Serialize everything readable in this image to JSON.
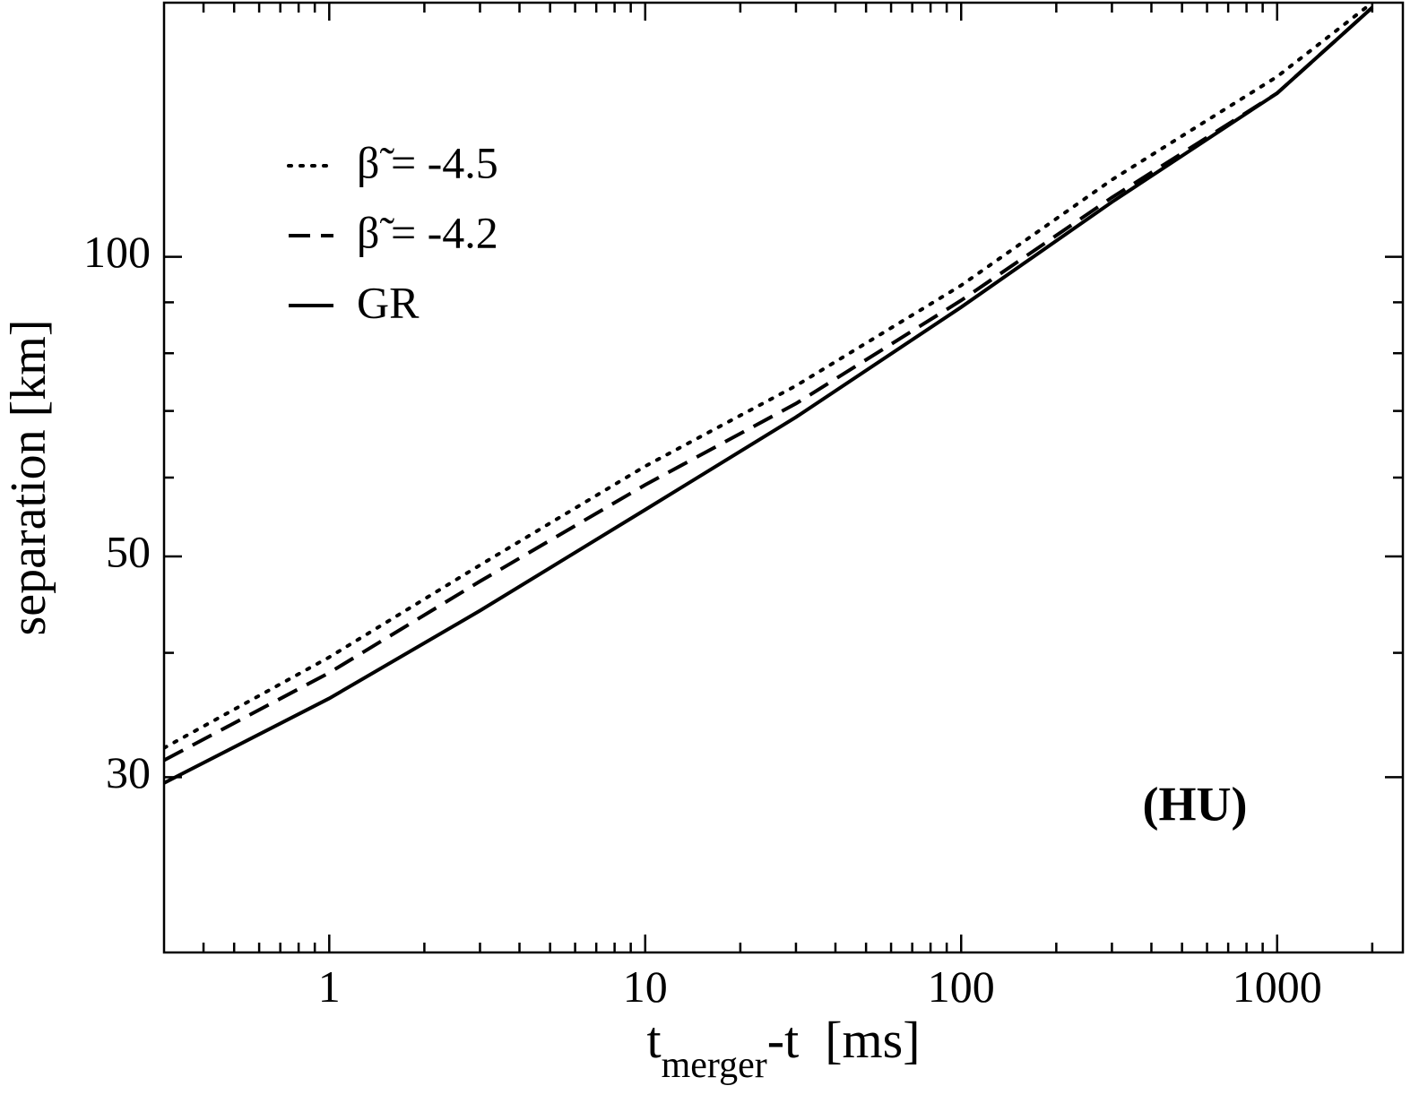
{
  "chart_data": {
    "type": "line",
    "xlabel": {
      "main": "t",
      "sub": "merger",
      "rest": "-t  [ms]"
    },
    "ylabel": "separation [km]",
    "annotation": "(HU)",
    "xscale": "log",
    "yscale": "log",
    "xlim": [
      0.3,
      2500
    ],
    "ylim": [
      20,
      180
    ],
    "xticks": [
      1,
      10,
      100,
      1000
    ],
    "xminorticks": [
      0.4,
      0.5,
      0.6,
      0.7,
      0.8,
      0.9,
      2,
      3,
      4,
      5,
      6,
      7,
      8,
      9,
      20,
      30,
      40,
      50,
      60,
      70,
      80,
      90,
      200,
      300,
      400,
      500,
      600,
      700,
      800,
      900,
      2000
    ],
    "yticks": [
      30,
      50,
      100
    ],
    "yminorticks": [
      40,
      60,
      70,
      80,
      90
    ],
    "legend": "upper left",
    "x": [
      0.3,
      1,
      3,
      10,
      30,
      100,
      300,
      1000,
      2000
    ],
    "series": [
      {
        "name": "β̃ = -4.5",
        "color": "#000000",
        "style": "dotted",
        "values": [
          32.1,
          39.6,
          49.0,
          61.6,
          74.2,
          93.6,
          119.5,
          151.7,
          180
        ]
      },
      {
        "name": "β̃ = -4.2",
        "color": "#000000",
        "style": "dashed",
        "values": [
          31.2,
          38.2,
          47.2,
          59.0,
          71.2,
          90.4,
          114.7,
          146,
          178
        ]
      },
      {
        "name": "GR",
        "color": "#000000",
        "style": "solid",
        "values": [
          29.6,
          36.0,
          44.1,
          55.7,
          69.0,
          89.0,
          113.5,
          146,
          178
        ]
      }
    ]
  }
}
